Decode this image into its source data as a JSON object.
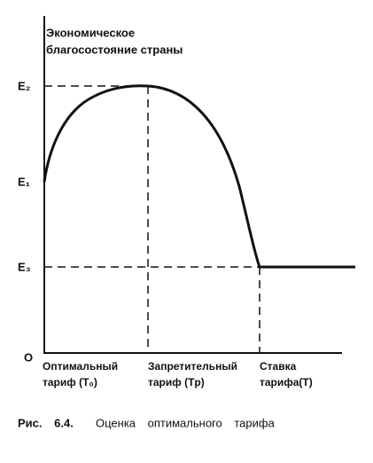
{
  "y_axis_label": {
    "line1": "Экономическое",
    "line2": "благосостояние  страны"
  },
  "y_levels": [
    "E₂",
    "E₁",
    "E₃"
  ],
  "origin": "O",
  "x_labels": [
    {
      "line1": "Оптимальный",
      "line2": "тариф (T₀)"
    },
    {
      "line1": "Запретительный",
      "line2": "тариф (Tp)"
    },
    {
      "line1": "Ставка",
      "line2": "тарифа(T)"
    }
  ],
  "caption": {
    "number": "Рис. 6.4.",
    "text": "Оценка оптимального тарифа"
  }
}
